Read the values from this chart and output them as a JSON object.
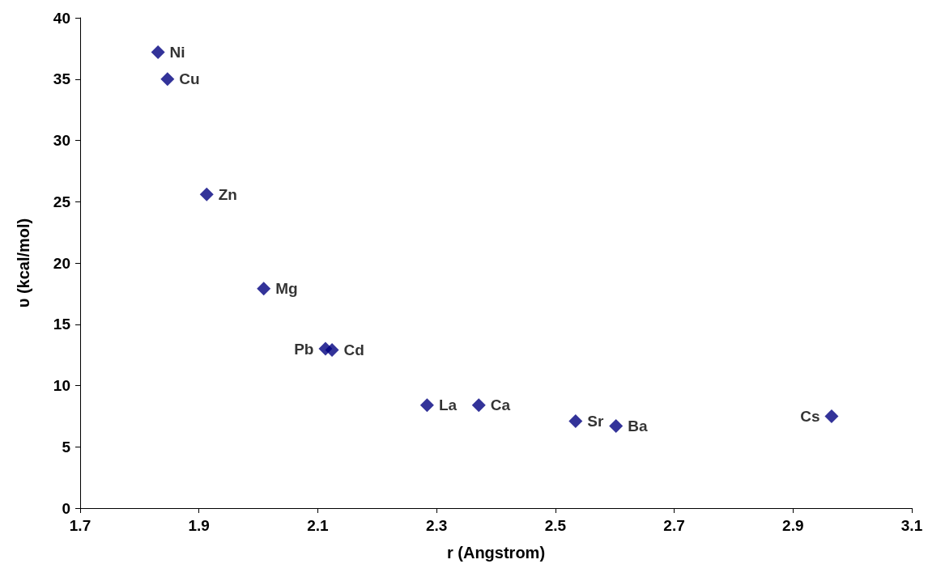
{
  "chart_data": {
    "type": "scatter",
    "xlabel": "r (Angstrom)",
    "ylabel": "υ (kcal/mol)",
    "x": [
      1.831,
      1.847,
      1.913,
      2.009,
      2.113,
      2.124,
      2.284,
      2.371,
      2.534,
      2.602,
      2.965
    ],
    "series": [
      {
        "color": "#000080",
        "values": [
          37.2,
          35.0,
          25.6,
          17.9,
          13.0,
          12.9,
          8.4,
          8.4,
          7.1,
          6.7,
          7.5
        ],
        "value_labels": [
          "Ni",
          "Cu",
          "Zn",
          "Mg",
          "Pb",
          "Cd",
          "La",
          "Ca",
          "Sr",
          "Ba",
          "Cs"
        ]
      }
    ],
    "xlim": [
      1.7,
      3.1
    ],
    "xticks": [
      1.7,
      1.9,
      2.1,
      2.3,
      2.5,
      2.7,
      2.9,
      3.1
    ],
    "ylim": [
      0,
      40
    ],
    "yticks": [
      0,
      5,
      10,
      15,
      20,
      25,
      30,
      35,
      40
    ],
    "grid": false,
    "marker": "diamond"
  }
}
